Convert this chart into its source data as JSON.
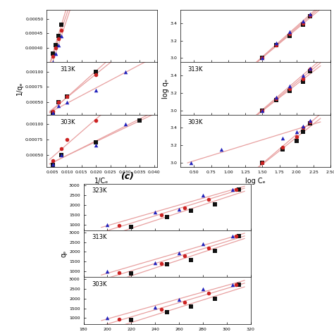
{
  "title_c": "(c)",
  "xlabel_a": "1/Cₑ",
  "ylabel_a": "1/qₑ",
  "xlabel_b": "log Cₑ",
  "ylabel_b": "log qₑ",
  "ylabel_c": "qₑ",
  "color_black": "#111111",
  "color_red": "#cc2222",
  "color_blue": "#2222bb",
  "line_color": "#e8a0a0",
  "panel_a": {
    "323K": {
      "black_x": [
        0.005,
        0.006,
        0.007,
        0.008
      ],
      "black_y": [
        0.00038,
        0.00041,
        0.00044,
        0.00048
      ],
      "red_x": [
        0.005,
        0.006,
        0.007,
        0.008
      ],
      "red_y": [
        0.00037,
        0.0004,
        0.00043,
        0.00046
      ],
      "blue_x": [
        0.005,
        0.006,
        0.007,
        0.008
      ],
      "blue_y": [
        0.00035,
        0.00038,
        0.00041,
        0.00044
      ]
    },
    "313K": {
      "black_x": [
        0.005,
        0.007,
        0.01,
        0.02
      ],
      "black_y": [
        0.00033,
        0.0005,
        0.0006,
        0.001
      ],
      "red_x": [
        0.005,
        0.007,
        0.01,
        0.02
      ],
      "red_y": [
        0.00035,
        0.0005,
        0.0006,
        0.00095
      ],
      "blue_x": [
        0.005,
        0.007,
        0.01,
        0.02,
        0.03
      ],
      "blue_y": [
        0.00033,
        0.00045,
        0.0005,
        0.0007,
        0.001
      ]
    },
    "303K": {
      "black_x": [
        0.005,
        0.008,
        0.02,
        0.035
      ],
      "black_y": [
        0.00033,
        0.0005,
        0.0007,
        0.00105
      ],
      "red_x": [
        0.005,
        0.008,
        0.01,
        0.02
      ],
      "red_y": [
        0.0004,
        0.0006,
        0.00075,
        0.00105
      ],
      "blue_x": [
        0.005,
        0.008,
        0.02,
        0.03
      ],
      "blue_y": [
        0.00035,
        0.0005,
        0.00065,
        0.001
      ]
    }
  },
  "panel_b": {
    "323K": {
      "black_x": [
        1.5,
        1.7,
        1.9,
        2.1,
        2.2
      ],
      "black_y": [
        3.0,
        3.15,
        3.25,
        3.38,
        3.48
      ],
      "red_x": [
        1.5,
        1.7,
        1.9,
        2.1,
        2.2
      ],
      "red_y": [
        3.0,
        3.15,
        3.28,
        3.4,
        3.49
      ],
      "blue_x": [
        1.5,
        1.7,
        1.9,
        2.1,
        2.2
      ],
      "blue_y": [
        3.0,
        3.17,
        3.3,
        3.42,
        3.5
      ]
    },
    "313K": {
      "black_x": [
        1.5,
        1.7,
        1.9,
        2.1,
        2.2
      ],
      "black_y": [
        3.0,
        3.12,
        3.22,
        3.33,
        3.45
      ],
      "red_x": [
        1.5,
        1.7,
        1.9,
        2.1,
        2.2
      ],
      "red_y": [
        3.0,
        3.13,
        3.25,
        3.36,
        3.47
      ],
      "blue_x": [
        1.5,
        1.7,
        1.9,
        2.1,
        2.2
      ],
      "blue_y": [
        3.0,
        3.15,
        3.28,
        3.4,
        3.48
      ]
    },
    "303K": {
      "black_x": [
        1.5,
        1.8,
        2.0,
        2.1,
        2.2
      ],
      "black_y": [
        3.0,
        3.15,
        3.25,
        3.35,
        3.45
      ],
      "red_x": [
        1.5,
        1.8,
        2.0,
        2.1,
        2.2
      ],
      "red_y": [
        3.0,
        3.18,
        3.3,
        3.4,
        3.47
      ],
      "blue_x": [
        0.45,
        0.9,
        1.8,
        2.0,
        2.1,
        2.2
      ],
      "blue_y": [
        3.0,
        3.15,
        3.28,
        3.35,
        3.42,
        3.48
      ]
    }
  },
  "panel_c": {
    "323K": {
      "black_x": [
        220,
        250,
        270,
        290,
        310
      ],
      "black_y": [
        900,
        1400,
        1700,
        2050,
        2800
      ],
      "red_x": [
        210,
        245,
        265,
        285,
        308
      ],
      "red_y": [
        950,
        1500,
        1850,
        2300,
        2800
      ],
      "blue_x": [
        200,
        240,
        260,
        280,
        305
      ],
      "blue_y": [
        1000,
        1650,
        1800,
        2500,
        2800
      ]
    },
    "313K": {
      "black_x": [
        220,
        250,
        270,
        290,
        310
      ],
      "black_y": [
        900,
        1350,
        1600,
        2050,
        2800
      ],
      "red_x": [
        210,
        245,
        265,
        285,
        308
      ],
      "red_y": [
        950,
        1400,
        1800,
        2200,
        2800
      ],
      "blue_x": [
        200,
        240,
        260,
        280,
        305
      ],
      "blue_y": [
        1000,
        1450,
        1950,
        2400,
        2800
      ]
    },
    "303K": {
      "black_x": [
        220,
        250,
        270,
        290,
        310
      ],
      "black_y": [
        900,
        1300,
        1600,
        2000,
        2700
      ],
      "red_x": [
        210,
        245,
        265,
        285,
        308
      ],
      "red_y": [
        950,
        1450,
        1800,
        2300,
        2700
      ],
      "blue_x": [
        200,
        240,
        260,
        280,
        305
      ],
      "blue_y": [
        1000,
        1550,
        1950,
        2500,
        2700
      ]
    }
  }
}
